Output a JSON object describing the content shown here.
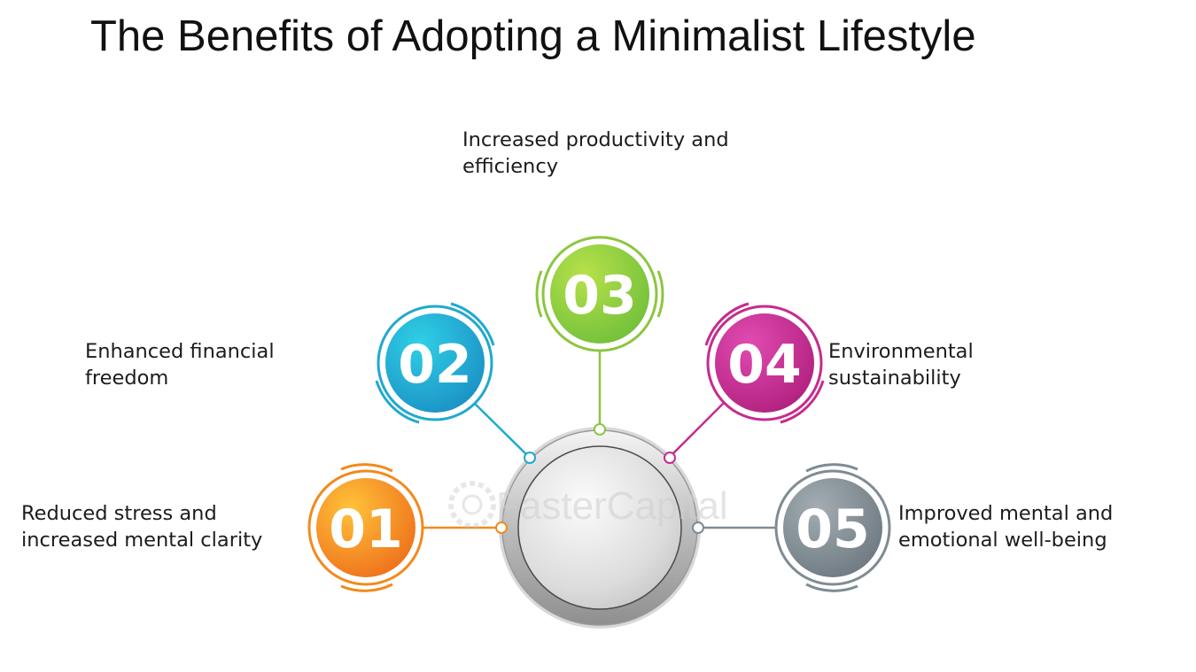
{
  "title": "The Benefits of Adopting a Minimalist Lifestyle",
  "watermark": "FasterCapital",
  "items": [
    {
      "number": "01",
      "lines": [
        "Reduced stress and",
        "increased mental clarity"
      ],
      "color": "#f28a1c"
    },
    {
      "number": "02",
      "lines": [
        "Enhanced financial",
        "freedom"
      ],
      "color": "#1fa9cf"
    },
    {
      "number": "03",
      "lines": [
        "Increased productivity and",
        "efficiency"
      ],
      "color": "#8cc63f"
    },
    {
      "number": "04",
      "lines": [
        "Environmental",
        "sustainability"
      ],
      "color": "#c72a8e"
    },
    {
      "number": "05",
      "lines": [
        "Improved mental and",
        "emotional well-being"
      ],
      "color": "#7f8b93"
    }
  ]
}
